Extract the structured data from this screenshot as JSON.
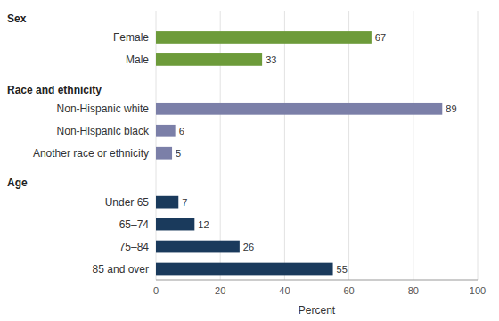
{
  "chart_data": {
    "type": "bar",
    "orientation": "horizontal",
    "categories": [
      "Sex",
      "Female",
      "Male",
      "Race and ethnicity",
      "Non-Hispanic white",
      "Non-Hispanic black",
      "Another race or ethnicity",
      "Age",
      "Under 65",
      "65–74",
      "75–84",
      "85 and over"
    ],
    "values": [
      null,
      67,
      33,
      null,
      89,
      6,
      5,
      null,
      7,
      12,
      26,
      55
    ],
    "colors": [
      null,
      "#6d9b3a",
      "#6d9b3a",
      null,
      "#7b7fa8",
      "#7b7fa8",
      "#7b7fa8",
      null,
      "#1a3a5c",
      "#1a3a5c",
      "#1a3a5c",
      "#1a3a5c"
    ],
    "x_label": "Percent",
    "xlim": [
      0,
      100
    ],
    "xticks": [
      0,
      20,
      40,
      60,
      80,
      100
    ],
    "grid": true,
    "data_labels": true
  }
}
